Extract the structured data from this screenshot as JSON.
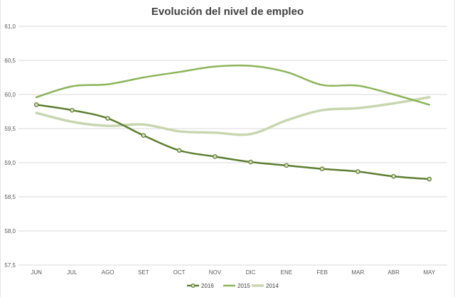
{
  "chart_data": {
    "type": "line",
    "title": "Evolución del nivel de empleo",
    "xlabel": "",
    "ylabel": "",
    "categories": [
      "JUN",
      "JUL",
      "AGO",
      "SET",
      "OCT",
      "NOV",
      "DIC",
      "ENE",
      "FEB",
      "MAR",
      "ABR",
      "MAY"
    ],
    "ylim": [
      57.5,
      61.0
    ],
    "yticks": [
      "57,5",
      "58,0",
      "58,5",
      "59,0",
      "59,5",
      "60,0",
      "60,5",
      "61,0"
    ],
    "grid": true,
    "legend_position": "bottom",
    "series": [
      {
        "name": "2016",
        "color": "#5e7d32",
        "marker": "circle",
        "values": [
          59.85,
          59.77,
          59.65,
          59.4,
          59.18,
          59.09,
          59.01,
          58.96,
          58.91,
          58.87,
          58.8,
          58.76
        ]
      },
      {
        "name": "2015",
        "color": "#8cb45a",
        "marker": "none",
        "values": [
          59.96,
          60.12,
          60.15,
          60.25,
          60.33,
          60.41,
          60.42,
          60.33,
          60.14,
          60.13,
          60.0,
          59.85
        ]
      },
      {
        "name": "2014",
        "color": "#c8d6b0",
        "marker": "none",
        "values": [
          59.73,
          59.6,
          59.54,
          59.56,
          59.46,
          59.44,
          59.42,
          59.62,
          59.77,
          59.8,
          59.87,
          59.96
        ]
      }
    ]
  }
}
